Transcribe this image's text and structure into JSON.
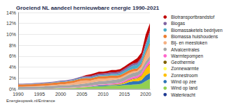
{
  "chart_data": {
    "type": "area",
    "title": "Groeiend NL aandeel hernieuwbare energie 1990-2021",
    "source": "Energieopwek.nl/Entrance",
    "stacked": true,
    "grid": true,
    "legend": "right",
    "categories": [
      "1990",
      null,
      null,
      null,
      null,
      "1995",
      null,
      null,
      null,
      null,
      "2000",
      null,
      null,
      null,
      null,
      "2005",
      null,
      null,
      null,
      null,
      "2010",
      null,
      null,
      null,
      null,
      "2015",
      null,
      null,
      null,
      null,
      "2020",
      null
    ],
    "ylim": [
      0,
      14
    ],
    "yticks": [
      {
        "value": 0,
        "label": "0%"
      },
      {
        "value": 2,
        "label": "2%"
      },
      {
        "value": 4,
        "label": "4%"
      },
      {
        "value": 6,
        "label": "6%"
      },
      {
        "value": 8,
        "label": "8%"
      },
      {
        "value": 10,
        "label": "10%"
      },
      {
        "value": 12,
        "label": "12%"
      },
      {
        "value": 14,
        "label": "14%"
      }
    ],
    "series": [
      {
        "name": "Waterkracht",
        "color": "#1f3a93",
        "values": [
          0.04,
          0.04,
          0.04,
          0.04,
          0.04,
          0.04,
          0.04,
          0.04,
          0.04,
          0.04,
          0.04,
          0.04,
          0.04,
          0.04,
          0.04,
          0.04,
          0.04,
          0.04,
          0.04,
          0.04,
          0.04,
          0.04,
          0.04,
          0.04,
          0.04,
          0.04,
          0.04,
          0.04,
          0.04,
          0.04,
          0.04,
          0.04
        ]
      },
      {
        "name": "Wind op land",
        "color": "#92d050",
        "values": [
          0.01,
          0.01,
          0.02,
          0.02,
          0.02,
          0.03,
          0.04,
          0.05,
          0.06,
          0.07,
          0.1,
          0.1,
          0.12,
          0.15,
          0.2,
          0.25,
          0.3,
          0.35,
          0.4,
          0.45,
          0.45,
          0.5,
          0.55,
          0.55,
          0.6,
          0.65,
          0.7,
          0.75,
          0.8,
          0.9,
          1.4,
          1.8
        ]
      },
      {
        "name": "Wind op zee",
        "color": "#2e75b6",
        "values": [
          0,
          0,
          0,
          0,
          0,
          0,
          0,
          0,
          0,
          0,
          0,
          0,
          0,
          0,
          0,
          0,
          0.02,
          0.05,
          0.1,
          0.15,
          0.15,
          0.15,
          0.15,
          0.15,
          0.15,
          0.25,
          0.5,
          0.6,
          0.55,
          0.65,
          1.0,
          1.1
        ]
      },
      {
        "name": "Zonnestroom",
        "color": "#ffc000",
        "values": [
          0,
          0,
          0,
          0,
          0,
          0,
          0,
          0,
          0,
          0,
          0,
          0,
          0,
          0,
          0,
          0,
          0.01,
          0.01,
          0.01,
          0.01,
          0.01,
          0.02,
          0.04,
          0.08,
          0.12,
          0.2,
          0.28,
          0.37,
          0.5,
          0.75,
          1.2,
          1.6
        ]
      },
      {
        "name": "Zonnewarmte",
        "color": "#ffff66",
        "values": [
          0.01,
          0.01,
          0.01,
          0.01,
          0.01,
          0.01,
          0.01,
          0.01,
          0.01,
          0.01,
          0.02,
          0.02,
          0.02,
          0.02,
          0.02,
          0.02,
          0.02,
          0.02,
          0.02,
          0.02,
          0.02,
          0.02,
          0.02,
          0.02,
          0.02,
          0.02,
          0.02,
          0.02,
          0.02,
          0.02,
          0.02,
          0.02
        ]
      },
      {
        "name": "Geothermie",
        "color": "#7f6000",
        "values": [
          0,
          0,
          0,
          0,
          0,
          0,
          0,
          0,
          0,
          0,
          0,
          0,
          0,
          0,
          0,
          0,
          0,
          0,
          0.01,
          0.01,
          0.02,
          0.02,
          0.03,
          0.04,
          0.06,
          0.08,
          0.09,
          0.1,
          0.1,
          0.11,
          0.12,
          0.12
        ]
      },
      {
        "name": "Warmtepompen",
        "color": "#ff66cc",
        "values": [
          0.01,
          0.01,
          0.01,
          0.01,
          0.02,
          0.02,
          0.02,
          0.03,
          0.03,
          0.04,
          0.05,
          0.05,
          0.06,
          0.07,
          0.08,
          0.09,
          0.1,
          0.11,
          0.12,
          0.13,
          0.15,
          0.16,
          0.17,
          0.18,
          0.2,
          0.25,
          0.28,
          0.32,
          0.36,
          0.42,
          0.5,
          0.6
        ]
      },
      {
        "name": "Afvalcentrales",
        "color": "#a5a5a5",
        "values": [
          0.3,
          0.3,
          0.32,
          0.33,
          0.35,
          0.36,
          0.38,
          0.4,
          0.42,
          0.43,
          0.45,
          0.46,
          0.47,
          0.48,
          0.5,
          0.52,
          0.53,
          0.55,
          0.57,
          0.58,
          0.6,
          0.62,
          0.63,
          0.65,
          0.67,
          0.7,
          0.7,
          0.72,
          0.73,
          0.74,
          0.75,
          0.75
        ]
      },
      {
        "name": "Bij- en meestoken",
        "color": "#f4b183",
        "values": [
          0.05,
          0.05,
          0.05,
          0.06,
          0.06,
          0.08,
          0.1,
          0.12,
          0.15,
          0.18,
          0.2,
          0.22,
          0.3,
          0.35,
          0.5,
          0.6,
          0.55,
          0.4,
          0.45,
          0.5,
          0.45,
          0.42,
          0.4,
          0.3,
          0.25,
          0.3,
          0.3,
          0.3,
          0.2,
          0.5,
          1.2,
          2.0
        ]
      },
      {
        "name": "Biomassa huishoudens",
        "color": "#ed7d31",
        "values": [
          0.4,
          0.4,
          0.4,
          0.4,
          0.4,
          0.4,
          0.4,
          0.4,
          0.4,
          0.4,
          0.42,
          0.42,
          0.42,
          0.42,
          0.42,
          0.42,
          0.42,
          0.42,
          0.42,
          0.42,
          0.45,
          0.45,
          0.45,
          0.45,
          0.45,
          0.45,
          0.45,
          0.45,
          0.45,
          0.45,
          0.5,
          0.5
        ]
      },
      {
        "name": "Biomassaketels bedrijven",
        "color": "#4bacc6",
        "values": [
          0.05,
          0.05,
          0.05,
          0.05,
          0.06,
          0.06,
          0.07,
          0.07,
          0.08,
          0.09,
          0.1,
          0.1,
          0.11,
          0.12,
          0.13,
          0.14,
          0.15,
          0.16,
          0.17,
          0.18,
          0.2,
          0.22,
          0.25,
          0.28,
          0.32,
          0.4,
          0.5,
          0.6,
          0.7,
          0.8,
          1.2,
          1.8
        ]
      },
      {
        "name": "Biogas",
        "color": "#8064a2",
        "values": [
          0.1,
          0.1,
          0.1,
          0.11,
          0.11,
          0.12,
          0.12,
          0.13,
          0.13,
          0.14,
          0.15,
          0.15,
          0.16,
          0.17,
          0.18,
          0.2,
          0.22,
          0.25,
          0.28,
          0.3,
          0.3,
          0.32,
          0.33,
          0.33,
          0.34,
          0.35,
          0.35,
          0.36,
          0.37,
          0.38,
          0.4,
          0.4
        ]
      },
      {
        "name": "Biotransportbrandstof",
        "color": "#c00000",
        "values": [
          0,
          0,
          0,
          0,
          0,
          0,
          0,
          0,
          0,
          0,
          0,
          0,
          0,
          0,
          0,
          0.02,
          0.2,
          0.3,
          0.3,
          0.35,
          0.3,
          0.35,
          0.4,
          0.4,
          0.4,
          0.4,
          0.45,
          0.5,
          0.8,
          0.9,
          1.6,
          1.3
        ]
      }
    ]
  }
}
